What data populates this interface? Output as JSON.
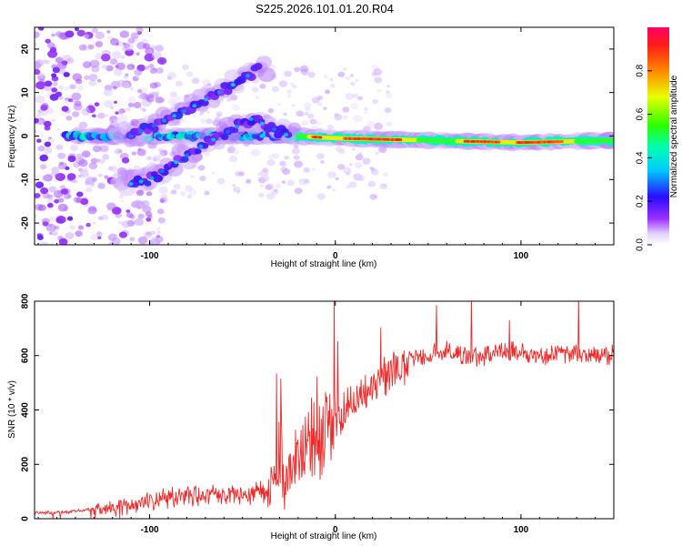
{
  "title": "S225.2026.101.01.20.R04",
  "colorbar_label": "Normalized spectral amplitude",
  "chart_data": [
    {
      "type": "heatmap",
      "title": "S225.2026.101.01.20.R04",
      "xlabel": "Height of straight line (km)",
      "ylabel": "Frequency (Hz)",
      "xlim": [
        -162,
        150
      ],
      "ylim": [
        -25,
        25
      ],
      "xticks": [
        -100,
        0,
        100
      ],
      "yticks": [
        -20,
        -10,
        0,
        10,
        20
      ],
      "colorbar": {
        "label": "Normalized spectral amplitude",
        "range": [
          0.0,
          1.0
        ],
        "ticks": [
          0.0,
          0.2,
          0.4,
          0.6,
          0.8
        ]
      },
      "features": [
        {
          "name": "main-ridge",
          "x": [
            -140,
            -20,
            0,
            50,
            100,
            150
          ],
          "freq": [
            0,
            0,
            -0.5,
            -1,
            -1.5,
            -1
          ]
        },
        {
          "name": "upper-branch",
          "x": [
            -110,
            -80,
            -50,
            -40
          ],
          "freq": [
            0,
            6,
            13,
            16
          ]
        },
        {
          "name": "lower-branch",
          "x": [
            -110,
            -100,
            -75,
            -45,
            -25
          ],
          "freq": [
            -11,
            -10,
            -3,
            4,
            0
          ]
        }
      ]
    },
    {
      "type": "line",
      "xlabel": "Height of straight line (km)",
      "ylabel": "SNR (10 * v/v)",
      "xlim": [
        -162,
        150
      ],
      "ylim": [
        0,
        800
      ],
      "xticks": [
        -100,
        0,
        100
      ],
      "yticks": [
        0,
        200,
        400,
        600,
        800
      ],
      "series": [
        {
          "name": "SNR",
          "color": "#ee2b2b",
          "x": [
            -162,
            -150,
            -140,
            -130,
            -120,
            -110,
            -100,
            -90,
            -80,
            -70,
            -60,
            -50,
            -40,
            -35,
            -30,
            -25,
            -20,
            -15,
            -10,
            -5,
            0,
            10,
            20,
            30,
            40,
            50,
            60,
            70,
            80,
            90,
            100,
            110,
            120,
            130,
            140,
            150
          ],
          "y": [
            20,
            22,
            28,
            35,
            40,
            50,
            60,
            75,
            85,
            90,
            85,
            90,
            95,
            130,
            160,
            130,
            260,
            280,
            300,
            330,
            360,
            430,
            480,
            540,
            580,
            600,
            610,
            600,
            600,
            620,
            610,
            600,
            610,
            600,
            600,
            605
          ]
        }
      ]
    }
  ]
}
